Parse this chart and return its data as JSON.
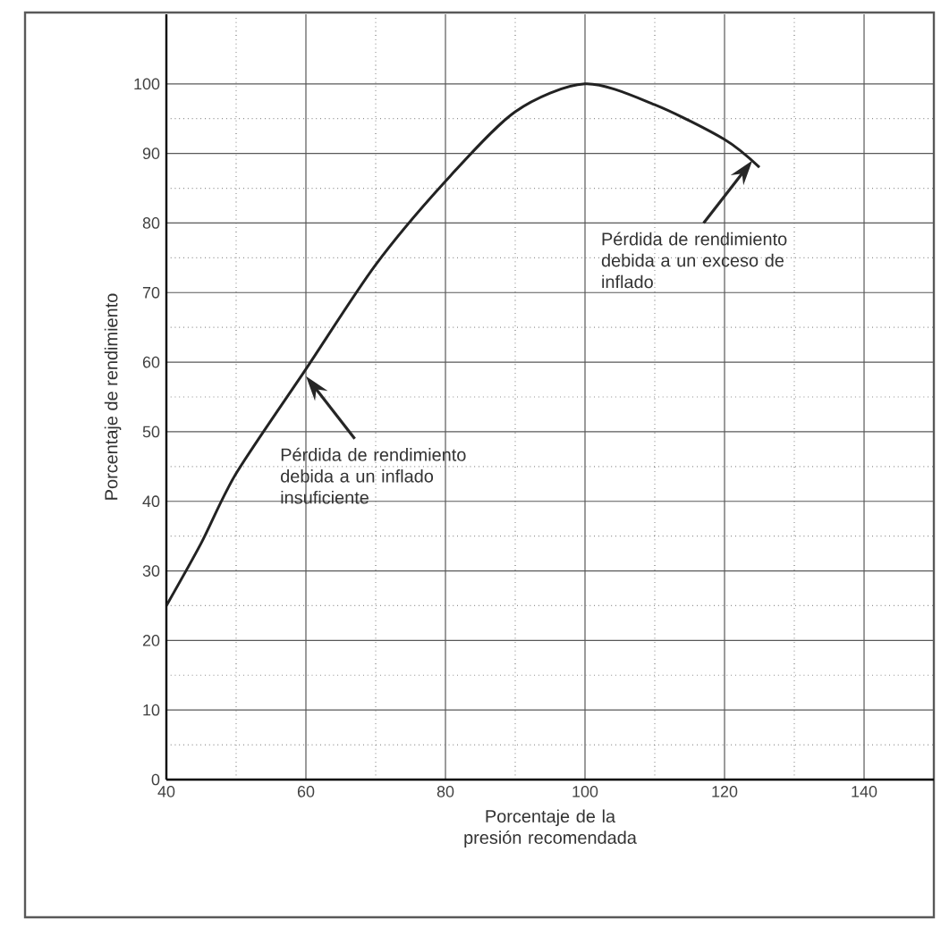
{
  "chart_data": {
    "type": "line",
    "xlabel": "Porcentaje de la presión recomendada",
    "ylabel": "Porcentaje de rendimiento",
    "x": [
      40,
      45,
      50,
      60,
      70,
      80,
      90,
      100,
      110,
      120,
      125
    ],
    "values": [
      25,
      34,
      44,
      59,
      74,
      86,
      96,
      100,
      97,
      92,
      88
    ],
    "color": "#222222",
    "xlim": [
      40,
      150
    ],
    "ylim": [
      0,
      110
    ],
    "xticks": [
      40,
      60,
      80,
      100,
      120,
      140
    ],
    "yticks": [
      0,
      10,
      20,
      30,
      40,
      50,
      60,
      70,
      80,
      90,
      100
    ],
    "grid": true,
    "marker": "none",
    "line_style": "solid",
    "annotations": [
      {
        "text": "Pérdida de rendimiento debida a un inflado insuficiente",
        "x": 60,
        "y": 58
      },
      {
        "text": "Pérdida de rendimiento debida a un exceso de inflado",
        "x": 124,
        "y": 89
      }
    ]
  }
}
